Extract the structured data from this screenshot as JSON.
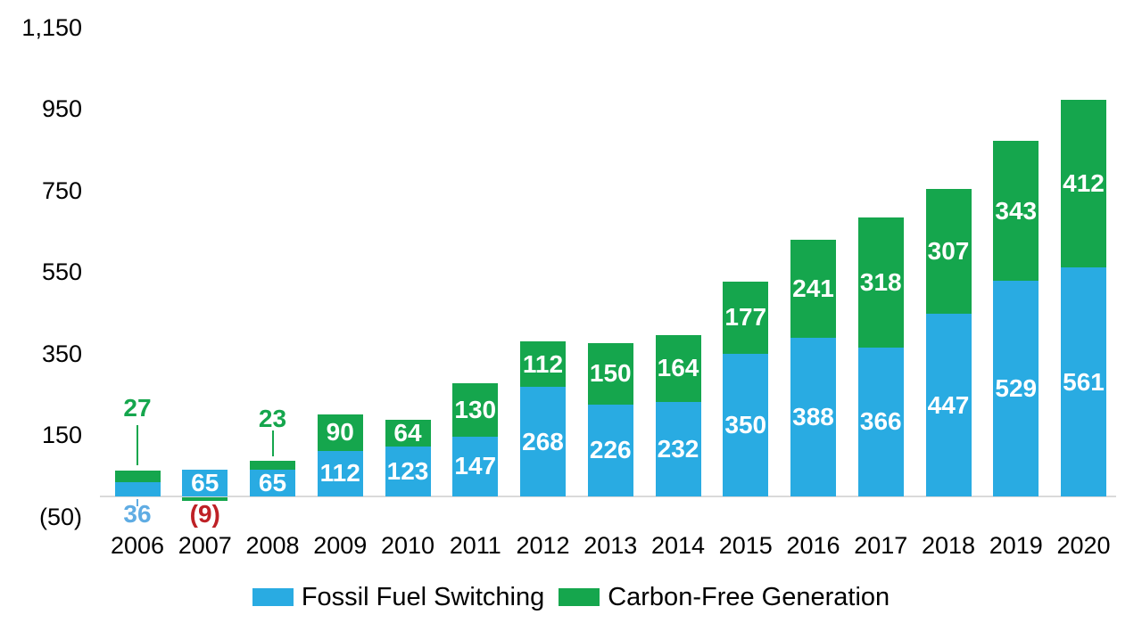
{
  "chart_data": {
    "type": "bar",
    "stacked": true,
    "title": "",
    "xlabel": "",
    "ylabel": "",
    "grid": false,
    "categories": [
      "2006",
      "2007",
      "2008",
      "2009",
      "2010",
      "2011",
      "2012",
      "2013",
      "2014",
      "2015",
      "2016",
      "2017",
      "2018",
      "2019",
      "2020"
    ],
    "series": [
      {
        "name": "Fossil Fuel Switching",
        "color": "#29ABE2",
        "values": [
          36,
          65,
          65,
          112,
          123,
          147,
          268,
          226,
          232,
          350,
          388,
          366,
          447,
          529,
          561
        ],
        "labels": [
          "36",
          "65",
          "65",
          "112",
          "123",
          "147",
          "268",
          "226",
          "232",
          "350",
          "388",
          "366",
          "447",
          "529",
          "561"
        ],
        "label_pos": [
          "below",
          "inside",
          "inside",
          "inside",
          "inside",
          "inside",
          "inside",
          "inside",
          "inside",
          "inside",
          "inside",
          "inside",
          "inside",
          "inside",
          "inside"
        ]
      },
      {
        "name": "Carbon-Free Generation",
        "color": "#15A64D",
        "values": [
          27,
          -9,
          23,
          90,
          64,
          130,
          112,
          150,
          164,
          177,
          241,
          318,
          307,
          343,
          412
        ],
        "labels": [
          "27",
          "(9)",
          "23",
          "90",
          "64",
          "130",
          "112",
          "150",
          "164",
          "177",
          "241",
          "318",
          "307",
          "343",
          "412"
        ],
        "label_pos": [
          "above",
          "below-negative",
          "above",
          "inside",
          "inside",
          "inside",
          "inside",
          "inside",
          "inside",
          "inside",
          "inside",
          "inside",
          "inside",
          "inside",
          "inside"
        ]
      }
    ],
    "y_axis": {
      "ylim": [
        -50,
        1150
      ],
      "ticks": [
        {
          "label": "1,150",
          "value": 1150
        },
        {
          "label": "950",
          "value": 950
        },
        {
          "label": "750",
          "value": 750
        },
        {
          "label": "550",
          "value": 550
        },
        {
          "label": "350",
          "value": 350
        },
        {
          "label": "150",
          "value": 150
        },
        {
          "label": "(50)",
          "value": -50
        }
      ]
    },
    "legend": {
      "position": "bottom",
      "items": [
        "Fossil Fuel Switching",
        "Carbon-Free Generation"
      ]
    },
    "colors": {
      "fossil_blue": "#29ABE2",
      "carbon_green": "#15A64D",
      "below_label_blue": "#5FACE3",
      "negative_label_red": "#BE2126",
      "axis_line_gray": "#DADADA",
      "bar_label_white": "#FFFFFF",
      "text_black": "#000000"
    }
  }
}
